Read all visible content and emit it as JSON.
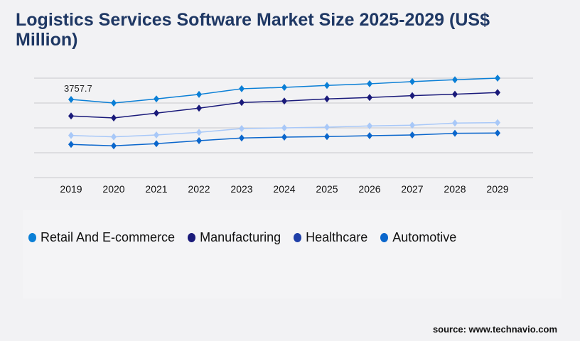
{
  "chart_data": {
    "type": "line",
    "title": "Logistics Services Software Market Size 2025-2029 (US$ Million)",
    "categories": [
      "2019",
      "2020",
      "2021",
      "2022",
      "2023",
      "2024",
      "2025",
      "2026",
      "2027",
      "2028",
      "2029"
    ],
    "ylim": [
      0,
      4780
    ],
    "grid": true,
    "legend_position": "bottom",
    "annotations": [
      {
        "series": "Retail And E-commerce",
        "x": "2019",
        "label": "3757.7"
      }
    ],
    "series": [
      {
        "name": "Retail And E-commerce",
        "color": "#0a7fd6",
        "legend_color": "#0a7fd6",
        "values": [
          3757.7,
          3587,
          3782,
          3997,
          4270,
          4338,
          4430,
          4509,
          4612,
          4704,
          4782
        ]
      },
      {
        "name": "Manufacturing",
        "color": "#1a1a7a",
        "legend_color": "#1a1a7a",
        "values": [
          2962,
          2869,
          3098,
          3337,
          3611,
          3679,
          3782,
          3850,
          3939,
          4007,
          4089
        ]
      },
      {
        "name": "Healthcare",
        "color": "#a8c8f8",
        "legend_color": "#1f3fa8",
        "values": [
          2026,
          1958,
          2050,
          2176,
          2357,
          2391,
          2425,
          2483,
          2518,
          2620,
          2641
        ]
      },
      {
        "name": "Automotive",
        "color": "#0a66cc",
        "legend_color": "#0a66cc",
        "values": [
          1595,
          1527,
          1629,
          1776,
          1903,
          1947,
          1971,
          2015,
          2050,
          2128,
          2142
        ]
      }
    ]
  },
  "source": "source: www.technavio.com"
}
